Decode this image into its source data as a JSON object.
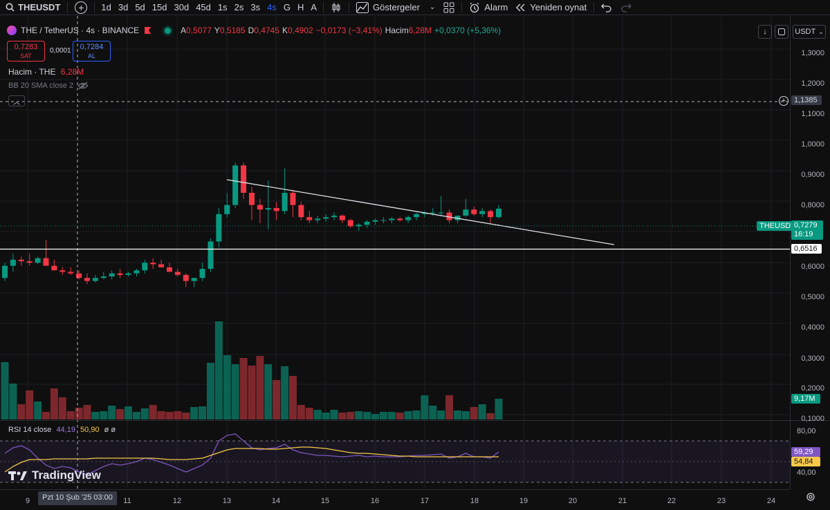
{
  "toolbar": {
    "symbol": "THEUSDT",
    "intervals": [
      "1d",
      "3d",
      "5d",
      "15d",
      "30d",
      "45d",
      "1s",
      "2s",
      "3s",
      "4s",
      "G",
      "H",
      "A"
    ],
    "active_interval": "4s",
    "indicators_label": "Göstergeler",
    "alarm_label": "Alarm",
    "replay_label": "Yeniden oynat"
  },
  "legend": {
    "title": "THE / TetherUS · 4s · BINANCE",
    "open_key": "A",
    "open": "0,5077",
    "high_key": "Y",
    "high": "0,5185",
    "low_key": "D",
    "low": "0,4745",
    "close_key": "K",
    "close": "0,4902",
    "change": "−0,0173 (−3,41%)",
    "volume_key": "Hacim",
    "volume": "6,28M",
    "volume_change": "+0,0370 (+5,36%)"
  },
  "trade": {
    "sell_price": "0,7283",
    "sell_label": "SAT",
    "spread": "0,0001",
    "buy_price": "0,7284",
    "buy_label": "AL"
  },
  "indicators": {
    "volume_name": "Hacim · THE",
    "volume_value": "6,28M",
    "bb_label": "BB 20 SMA close 2",
    "rsi_label": "RSI 14 close",
    "rsi_value": "44,19",
    "rsi_ma_value": "50,90",
    "rsi_extra": "ø ø"
  },
  "price_axis": {
    "currency": "USDT",
    "labels": [
      "1,3000",
      "1,2000",
      "1,1000",
      "1,0000",
      "0,9000",
      "0,8000",
      "0,6000",
      "0,5000",
      "0,4000",
      "0,3000",
      "0,2000",
      "0,1000"
    ],
    "crosshair_price": "1,1385",
    "last_symbol": "THEUSDT",
    "last_price": "0,7279",
    "countdown": "16:19",
    "hline_price": "0,6516",
    "volume_tag": "9,17M",
    "rsi_axis": [
      "80,00",
      "40,00"
    ],
    "rsi_tag": "59,29",
    "rsi_ma_tag": "54,84"
  },
  "time_axis": {
    "labels": [
      "9",
      "11",
      "12",
      "13",
      "14",
      "15",
      "16",
      "17",
      "18",
      "19",
      "20",
      "21",
      "22",
      "23",
      "24"
    ],
    "crosshair_label": "Pzt 10 Şub '25   03:00"
  },
  "colors": {
    "up": "#089981",
    "down": "#f23645",
    "rsi": "#7e57c2",
    "rsi_ma": "#f7c948",
    "accent": "#2962ff"
  },
  "logo_text": "TradingView"
}
